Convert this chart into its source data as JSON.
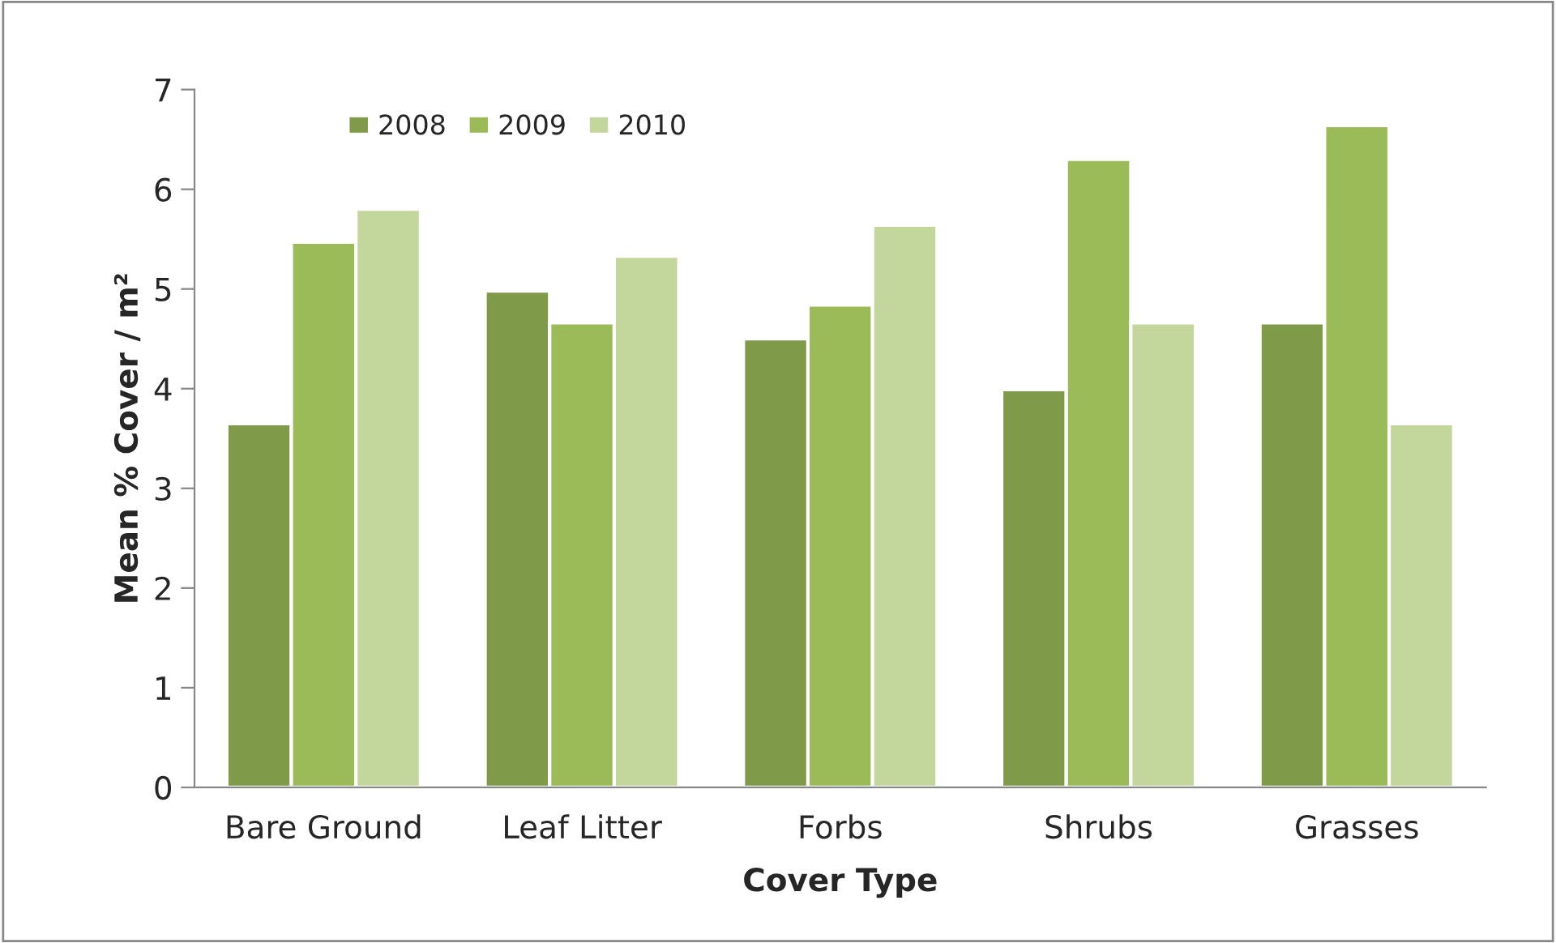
{
  "chart_data": {
    "type": "bar",
    "xlabel": "Cover Type",
    "ylabel": "Mean % Cover / m²",
    "categories": [
      "Bare Ground",
      "Leaf Litter",
      "Forbs",
      "Shrubs",
      "Grasses"
    ],
    "series": [
      {
        "name": "2008",
        "color": "#7f9a48",
        "values": [
          3.65,
          4.98,
          4.5,
          3.99,
          4.66
        ]
      },
      {
        "name": "2009",
        "color": "#9bbb59",
        "values": [
          5.47,
          4.66,
          4.84,
          6.3,
          6.64
        ]
      },
      {
        "name": "2010",
        "color": "#c3d69b",
        "values": [
          5.8,
          5.33,
          5.64,
          4.66,
          3.65
        ]
      }
    ],
    "ylim": [
      0,
      7
    ],
    "yticks": [
      0,
      1,
      2,
      3,
      4,
      5,
      6,
      7
    ],
    "grid": false,
    "legend": "top left"
  }
}
